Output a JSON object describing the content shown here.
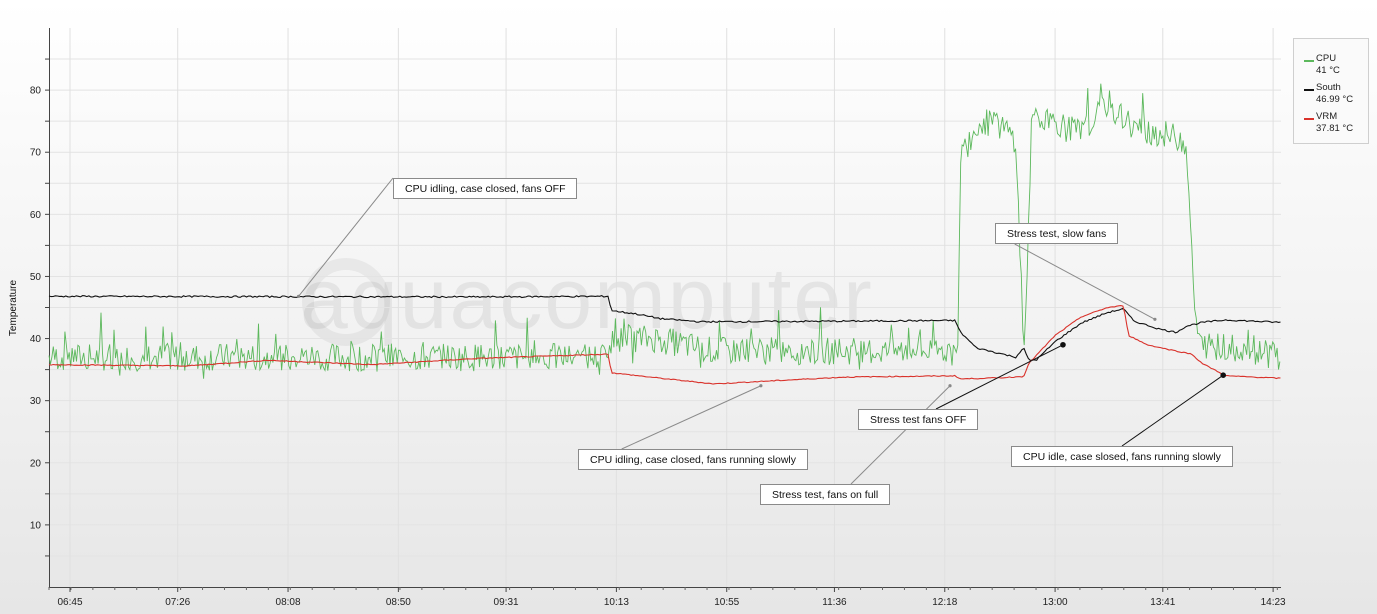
{
  "chart_data": {
    "type": "line",
    "ylabel": "Temperature",
    "ylim": [
      0,
      90
    ],
    "yticks": [
      10,
      20,
      30,
      40,
      50,
      60,
      70,
      80
    ],
    "xticks": [
      "06:45",
      "07:26",
      "08:08",
      "08:50",
      "09:31",
      "10:13",
      "10:55",
      "11:36",
      "12:18",
      "13:00",
      "13:41",
      "14:23"
    ],
    "x_start_min": 397,
    "x_end_min": 866,
    "grid": true,
    "watermark": "aquacomputer",
    "legend": {
      "placement": "right",
      "items": [
        {
          "name": "CPU",
          "value": "41 °C",
          "color": "#5cb85c"
        },
        {
          "name": "South",
          "value": "46.99 °C",
          "color": "#111111"
        },
        {
          "name": "VRM",
          "value": "37.81 °C",
          "color": "#d9322b"
        }
      ]
    },
    "series": [
      {
        "name": "CPU",
        "color": "#5cb85c",
        "base": 37,
        "noise": 4.5,
        "noisy": true,
        "points": [
          [
            397,
            37
          ],
          [
            610,
            37
          ],
          [
            611,
            40
          ],
          [
            628,
            40
          ],
          [
            650,
            38
          ],
          [
            700,
            38
          ],
          [
            740,
            38
          ],
          [
            743,
            37
          ],
          [
            744,
            70
          ],
          [
            748,
            72
          ],
          [
            752,
            75
          ],
          [
            760,
            74
          ],
          [
            765,
            72
          ],
          [
            768,
            40
          ],
          [
            769,
            44
          ],
          [
            771,
            75
          ],
          [
            780,
            75
          ],
          [
            790,
            73
          ],
          [
            800,
            78
          ],
          [
            810,
            74
          ],
          [
            820,
            73
          ],
          [
            830,
            72
          ],
          [
            833,
            45
          ],
          [
            834,
            42
          ],
          [
            835,
            39
          ],
          [
            866,
            38
          ]
        ]
      },
      {
        "name": "South",
        "color": "#111111",
        "base": 0,
        "noise": 0.25,
        "noisy": false,
        "points": [
          [
            397,
            46.8
          ],
          [
            560,
            46.7
          ],
          [
            610,
            46.8
          ],
          [
            611,
            44.5
          ],
          [
            620,
            44.0
          ],
          [
            630,
            43.2
          ],
          [
            645,
            42.7
          ],
          [
            700,
            42.8
          ],
          [
            738,
            42.9
          ],
          [
            742,
            42.9
          ],
          [
            744,
            41
          ],
          [
            750,
            38.5
          ],
          [
            760,
            37.5
          ],
          [
            765,
            37.0
          ],
          [
            768,
            38.5
          ],
          [
            770,
            36.5
          ],
          [
            773,
            36.6
          ],
          [
            780,
            39.5
          ],
          [
            790,
            42.5
          ],
          [
            800,
            44.2
          ],
          [
            806,
            44.8
          ],
          [
            810,
            42.8
          ],
          [
            820,
            41.5
          ],
          [
            826,
            41.0
          ],
          [
            830,
            42.0
          ],
          [
            836,
            42.6
          ],
          [
            845,
            43.0
          ],
          [
            866,
            42.6
          ]
        ]
      },
      {
        "name": "VRM",
        "color": "#d9322b",
        "base": 0,
        "noise": 0.15,
        "noisy": false,
        "points": [
          [
            397,
            35.8
          ],
          [
            450,
            35.6
          ],
          [
            480,
            36.5
          ],
          [
            520,
            35.8
          ],
          [
            560,
            36.8
          ],
          [
            610,
            37.5
          ],
          [
            611,
            34.5
          ],
          [
            630,
            33.6
          ],
          [
            650,
            32.7
          ],
          [
            700,
            33.8
          ],
          [
            742,
            34.0
          ],
          [
            744,
            33.5
          ],
          [
            760,
            33.7
          ],
          [
            768,
            33.9
          ],
          [
            770,
            36.0
          ],
          [
            780,
            40.5
          ],
          [
            790,
            43.5
          ],
          [
            800,
            45.0
          ],
          [
            806,
            45.3
          ],
          [
            808,
            40.5
          ],
          [
            815,
            39.0
          ],
          [
            826,
            38.0
          ],
          [
            832,
            37.5
          ],
          [
            836,
            36.0
          ],
          [
            845,
            34.0
          ],
          [
            866,
            33.6
          ]
        ]
      }
    ],
    "annotations": [
      {
        "id": "ann-cpu-idle-fans-off",
        "text": "CPU idling, case closed, fans OFF",
        "point": [
          492,
          46.8
        ],
        "box_anchor": "bottom-left"
      },
      {
        "id": "ann-cpu-idle-fans-slow",
        "text": "CPU idling, case closed, fans running slowly",
        "point": [
          668,
          32.4
        ],
        "box_anchor": "top-left"
      },
      {
        "id": "ann-stress-fans-full",
        "text": "Stress test, fans on full",
        "point": [
          740,
          32.4
        ],
        "box_anchor": "top-right"
      },
      {
        "id": "ann-stress-fans-off",
        "text": "Stress test fans OFF",
        "point": [
          783,
          39.0
        ],
        "box_anchor": "top-right"
      },
      {
        "id": "ann-stress-slow-fans",
        "text": "Stress test, slow fans",
        "point": [
          818,
          43.1
        ],
        "box_anchor": "bottom-right"
      },
      {
        "id": "ann-cpu-idle-slosed",
        "text": "CPU idle, case slosed, fans running slowly",
        "point": [
          844,
          34.1
        ],
        "box_anchor": "top-right"
      }
    ]
  }
}
